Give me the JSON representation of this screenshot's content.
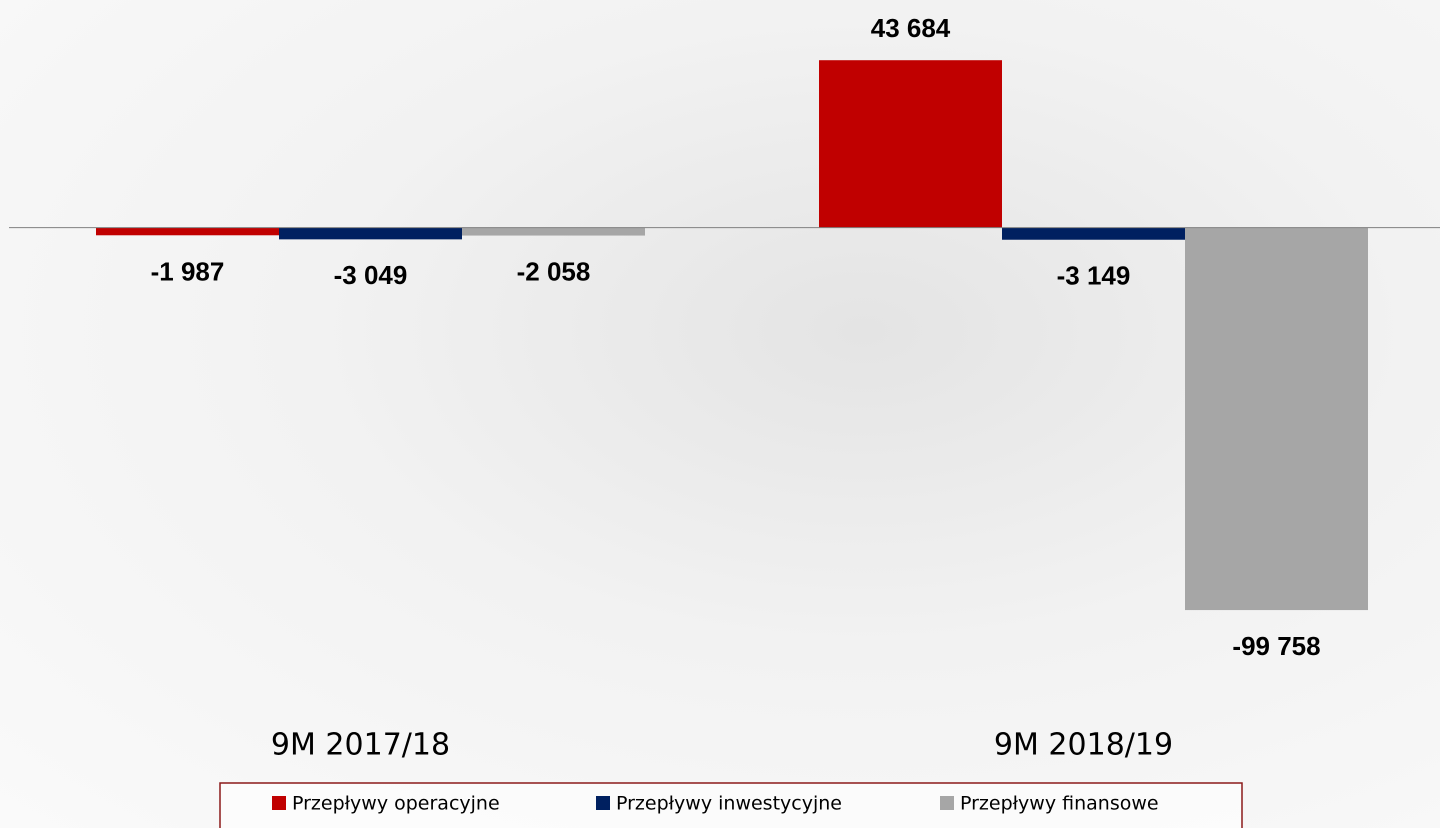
{
  "chart_data": {
    "type": "bar",
    "categories": [
      "9M 2017/18",
      "9M 2018/19"
    ],
    "series": [
      {
        "name": "Przepływy operacyjne",
        "color": "#c00000",
        "values": [
          -1987,
          43684
        ],
        "value_labels": [
          "-1 987",
          "43 684"
        ]
      },
      {
        "name": "Przepływy inwestycyjne",
        "color": "#002060",
        "values": [
          -3049,
          -3149
        ],
        "value_labels": [
          "-3 049",
          "-3 149"
        ]
      },
      {
        "name": "Przepływy finansowe",
        "color": "#a6a6a6",
        "values": [
          -2058,
          -99758
        ],
        "value_labels": [
          "-2 058",
          "-99 758"
        ]
      }
    ],
    "ylim": [
      -100000,
      50000
    ],
    "legend": "bottom"
  }
}
